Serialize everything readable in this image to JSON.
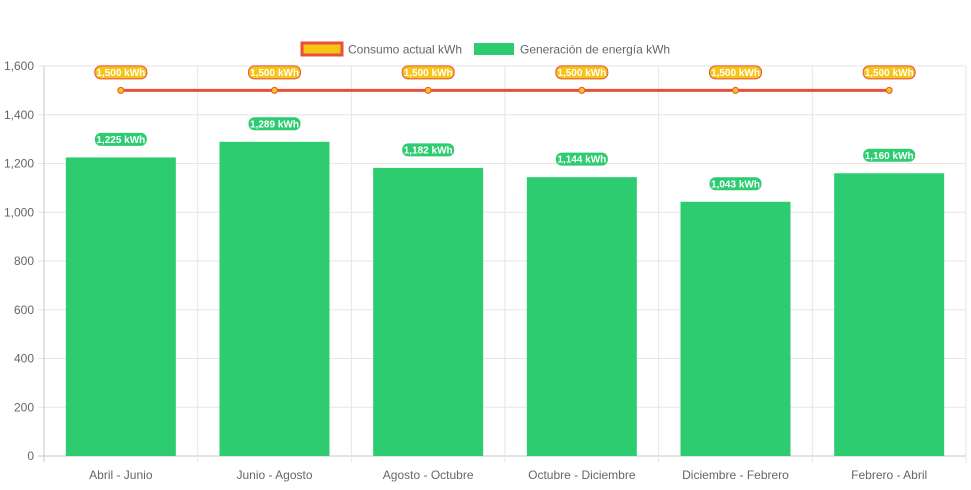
{
  "chart_data": {
    "type": "bar",
    "categories": [
      "Abril - Junio",
      "Junio - Agosto",
      "Agosto - Octubre",
      "Octubre - Diciembre",
      "Diciembre - Febrero",
      "Febrero - Abril"
    ],
    "series": [
      {
        "name": "Consumo actual kWh",
        "kind": "line",
        "values": [
          1500,
          1500,
          1500,
          1500,
          1500,
          1500
        ],
        "labels": [
          "1,500 kWh",
          "1,500 kWh",
          "1,500 kWh",
          "1,500 kWh",
          "1,500 kWh",
          "1,500 kWh"
        ],
        "fill_color": "#f5c518",
        "line_color": "#e8503a"
      },
      {
        "name": "Generación de energía kWh",
        "kind": "bar",
        "values": [
          1225,
          1289,
          1182,
          1144,
          1043,
          1160
        ],
        "labels": [
          "1,225 kWh",
          "1,289 kWh",
          "1,182 kWh",
          "1,144 kWh",
          "1,043 kWh",
          "1,160 kWh"
        ],
        "fill_color": "#2ecc71"
      }
    ],
    "yticks": [
      "0",
      "200",
      "400",
      "600",
      "800",
      "1,000",
      "1,200",
      "1,400",
      "1,600"
    ],
    "ylim": [
      0,
      1600
    ],
    "ystep": 200,
    "title": "",
    "xlabel": "",
    "ylabel": "",
    "grid": true,
    "legend_position": "top-center"
  }
}
